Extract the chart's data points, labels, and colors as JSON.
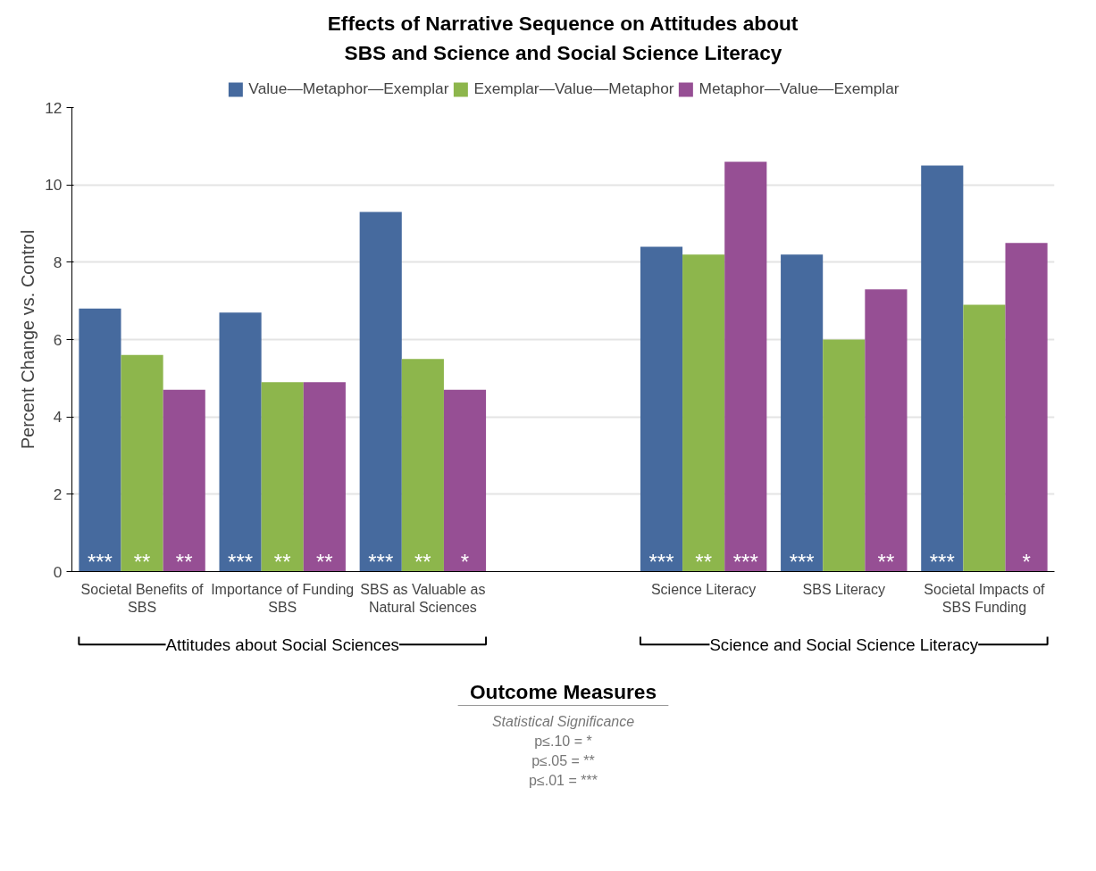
{
  "chart_data": {
    "type": "bar",
    "title": "Effects of Narrative Sequence on Attitudes about SBS and Science and Social Science Literacy",
    "xlabel": "Outcome Measures",
    "ylabel": "Percent Change vs. Control",
    "categories": [
      "Societal Benefits of SBS",
      "Importance of Funding SBS",
      "SBS as Valuable as Natural Sciences",
      null,
      "Science Literacy",
      "SBS Literacy",
      "Societal Impacts of SBS Funding"
    ],
    "series": [
      {
        "name": "Value—Metaphor—Exemplar",
        "color": "#466a9e",
        "values": [
          6.8,
          6.7,
          9.3,
          null,
          8.4,
          8.2,
          10.5
        ],
        "value_labels": [
          "***",
          "***",
          "***",
          null,
          "***",
          "***",
          "***"
        ]
      },
      {
        "name": "Exemplar—Value—Metaphor",
        "color": "#8db64c",
        "values": [
          5.6,
          4.9,
          5.5,
          null,
          8.2,
          6.0,
          6.9
        ],
        "value_labels": [
          "**",
          "**",
          "**",
          null,
          "**",
          null,
          null
        ]
      },
      {
        "name": "Metaphor—Value—Exemplar",
        "color": "#964f94",
        "values": [
          4.7,
          4.9,
          4.7,
          null,
          10.6,
          7.3,
          8.5
        ],
        "value_labels": [
          "**",
          "**",
          "*",
          null,
          "***",
          "**",
          "*"
        ]
      }
    ],
    "ylim": [
      0,
      12
    ],
    "yticks": [
      0,
      2,
      4,
      6,
      8,
      10,
      12
    ],
    "grid": "y",
    "legend": "top",
    "annotations": [
      "Attitudes about Social Sciences",
      "Science and Social Science Literacy",
      "Statistical Significance",
      "p≤.10 = *",
      "p≤.05 = **",
      "p≤.01 = ***"
    ]
  }
}
